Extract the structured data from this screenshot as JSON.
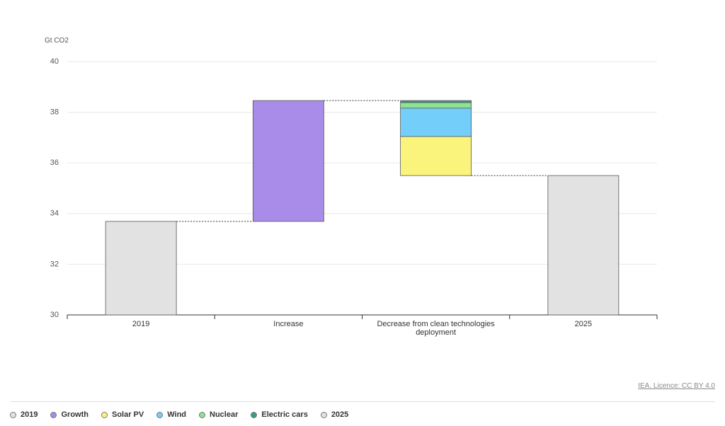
{
  "chart_data": {
    "type": "waterfall",
    "y_label": "Gt CO2",
    "categories": [
      "2019",
      "Increase",
      "Decrease from clean technologies deployment",
      "2025"
    ],
    "series": [
      {
        "name": "2019",
        "color": "#e2e2e2",
        "values": [
          33.69,
          null,
          null,
          null
        ]
      },
      {
        "name": "Growth",
        "color": "#a98be9",
        "values": [
          null,
          4.77,
          null,
          null
        ]
      },
      {
        "name": "Solar PV",
        "color": "#fbf47c",
        "values": [
          null,
          null,
          -1.54,
          null
        ]
      },
      {
        "name": "Wind",
        "color": "#74cefa",
        "values": [
          null,
          null,
          -1.12,
          null
        ]
      },
      {
        "name": "Nuclear",
        "color": "#8fe390",
        "values": [
          null,
          null,
          -0.22,
          null
        ]
      },
      {
        "name": "Electric cars",
        "color": "#3d9a8c",
        "values": [
          null,
          null,
          -0.08,
          null
        ]
      },
      {
        "name": "2025",
        "color": "#e2e2e2",
        "values": [
          null,
          null,
          null,
          35.5
        ]
      }
    ],
    "ylim": [
      30,
      40
    ],
    "yticks": [
      30,
      32,
      34,
      36,
      38,
      40
    ],
    "grid": true,
    "source": "IEA. Licence: CC BY 4.0"
  }
}
